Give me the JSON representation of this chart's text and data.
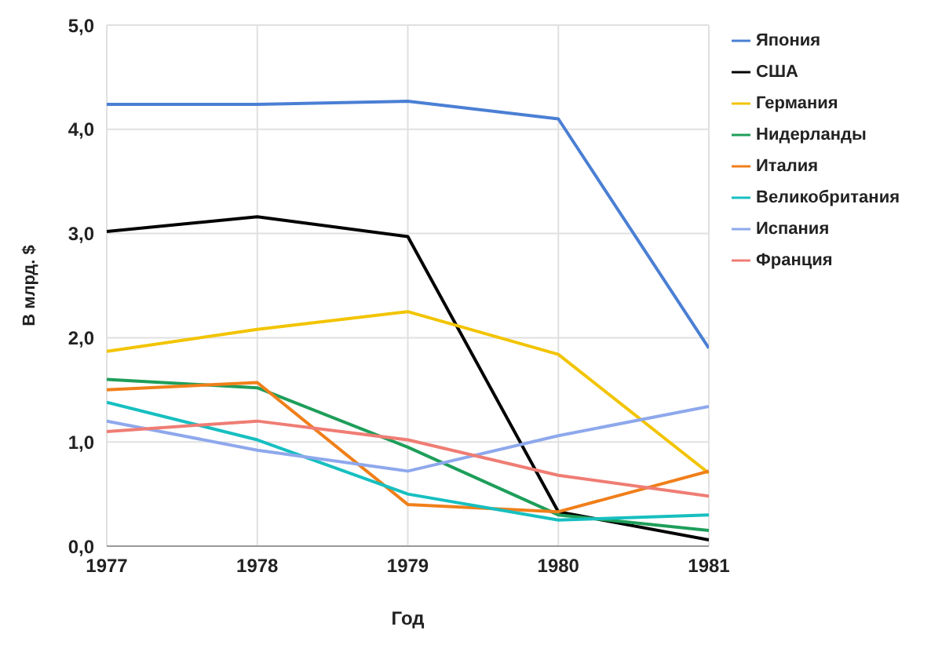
{
  "chart_data": {
    "type": "line",
    "xlabel": "Год",
    "ylabel": "В млрд. $",
    "x": [
      1977,
      1978,
      1979,
      1980,
      1981
    ],
    "xlim": [
      1977,
      1981
    ],
    "xticks": [
      1977,
      1978,
      1979,
      1980,
      1981
    ],
    "ylim": [
      0,
      5
    ],
    "yticks": [
      {
        "value": 0,
        "label": "0,0"
      },
      {
        "value": 1,
        "label": "1,0"
      },
      {
        "value": 2,
        "label": "2,0"
      },
      {
        "value": 3,
        "label": "3,0"
      },
      {
        "value": 4,
        "label": "4,0"
      },
      {
        "value": 5,
        "label": "5,0"
      }
    ],
    "grid": true,
    "legend": "right",
    "marker": "none",
    "series": [
      {
        "name": "Япония",
        "color": "#4a7fd4",
        "values": [
          4.24,
          4.24,
          4.27,
          4.1,
          1.9
        ]
      },
      {
        "name": "США",
        "color": "#000000",
        "values": [
          3.02,
          3.16,
          2.97,
          0.33,
          0.06
        ]
      },
      {
        "name": "Германия",
        "color": "#f2c400",
        "values": [
          1.87,
          2.08,
          2.25,
          1.84,
          0.7
        ]
      },
      {
        "name": "Нидерланды",
        "color": "#1e9e5a",
        "values": [
          1.6,
          1.52,
          0.95,
          0.3,
          0.15
        ]
      },
      {
        "name": "Италия",
        "color": "#f07f1a",
        "values": [
          1.5,
          1.57,
          0.4,
          0.33,
          0.72
        ]
      },
      {
        "name": "Великобритания",
        "color": "#17bfc0",
        "values": [
          1.38,
          1.02,
          0.5,
          0.25,
          0.3
        ]
      },
      {
        "name": "Испания",
        "color": "#8ea8ec",
        "values": [
          1.2,
          0.92,
          0.72,
          1.06,
          1.34
        ]
      },
      {
        "name": "Франция",
        "color": "#ef7d74",
        "values": [
          1.1,
          1.2,
          1.02,
          0.68,
          0.48
        ]
      }
    ]
  }
}
